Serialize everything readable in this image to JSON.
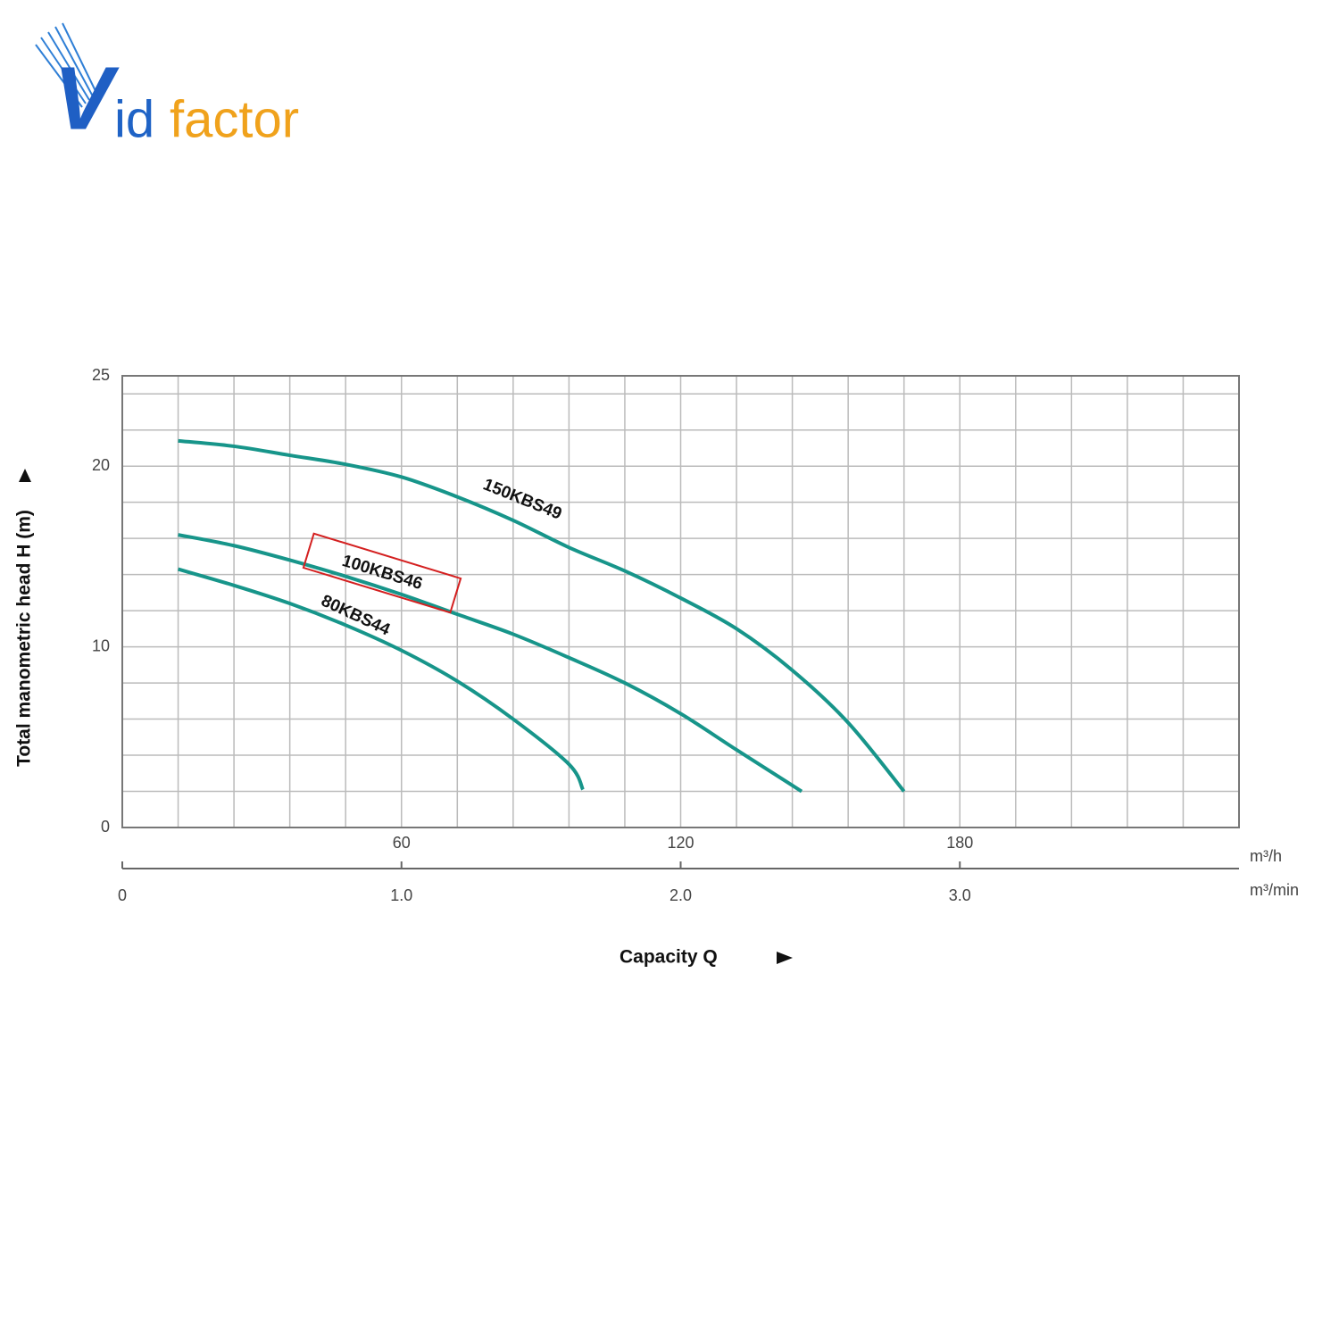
{
  "logo": {
    "v": "V",
    "id": "id",
    "factor": "factor"
  },
  "chart_data": {
    "type": "line",
    "ylabel": "Total manometric head H (m)",
    "xlabel": "Capacity Q",
    "x_unit": "m³/h",
    "x2_unit": "m³/min",
    "xlim": [
      0,
      240
    ],
    "xticks": [
      60,
      120,
      180
    ],
    "x2lim": [
      0,
      4
    ],
    "x2ticks": [
      0,
      {
        "value": 1,
        "label": "1.0"
      },
      {
        "value": 2,
        "label": "2.0"
      },
      {
        "value": 3,
        "label": "3.0"
      }
    ],
    "ylim": [
      0,
      25
    ],
    "yticks": [
      0,
      10,
      20,
      25
    ],
    "grid": {
      "x_step": 12,
      "y_step": 2
    },
    "series": [
      {
        "name": "150KBS49",
        "color": "#17958a",
        "x": [
          12,
          24,
          36,
          48,
          60,
          72,
          84,
          96,
          108,
          120,
          132,
          144,
          156,
          168
        ],
        "values": [
          21.4,
          21.1,
          20.6,
          20.1,
          19.4,
          18.3,
          17.0,
          15.5,
          14.2,
          12.7,
          11.0,
          8.7,
          5.8,
          2.0
        ]
      },
      {
        "name": "100KBS46",
        "color": "#17958a",
        "highlight": true,
        "x": [
          12,
          24,
          36,
          48,
          60,
          72,
          84,
          96,
          108,
          120,
          132,
          146
        ],
        "values": [
          16.2,
          15.6,
          14.8,
          13.9,
          12.9,
          11.8,
          10.7,
          9.4,
          8.0,
          6.3,
          4.3,
          2.0
        ]
      },
      {
        "name": "80KBS44",
        "color": "#17958a",
        "x": [
          12,
          24,
          36,
          48,
          60,
          72,
          84,
          96,
          99
        ],
        "values": [
          14.3,
          13.4,
          12.4,
          11.2,
          9.8,
          8.1,
          6.0,
          3.5,
          2.1
        ]
      }
    ]
  }
}
